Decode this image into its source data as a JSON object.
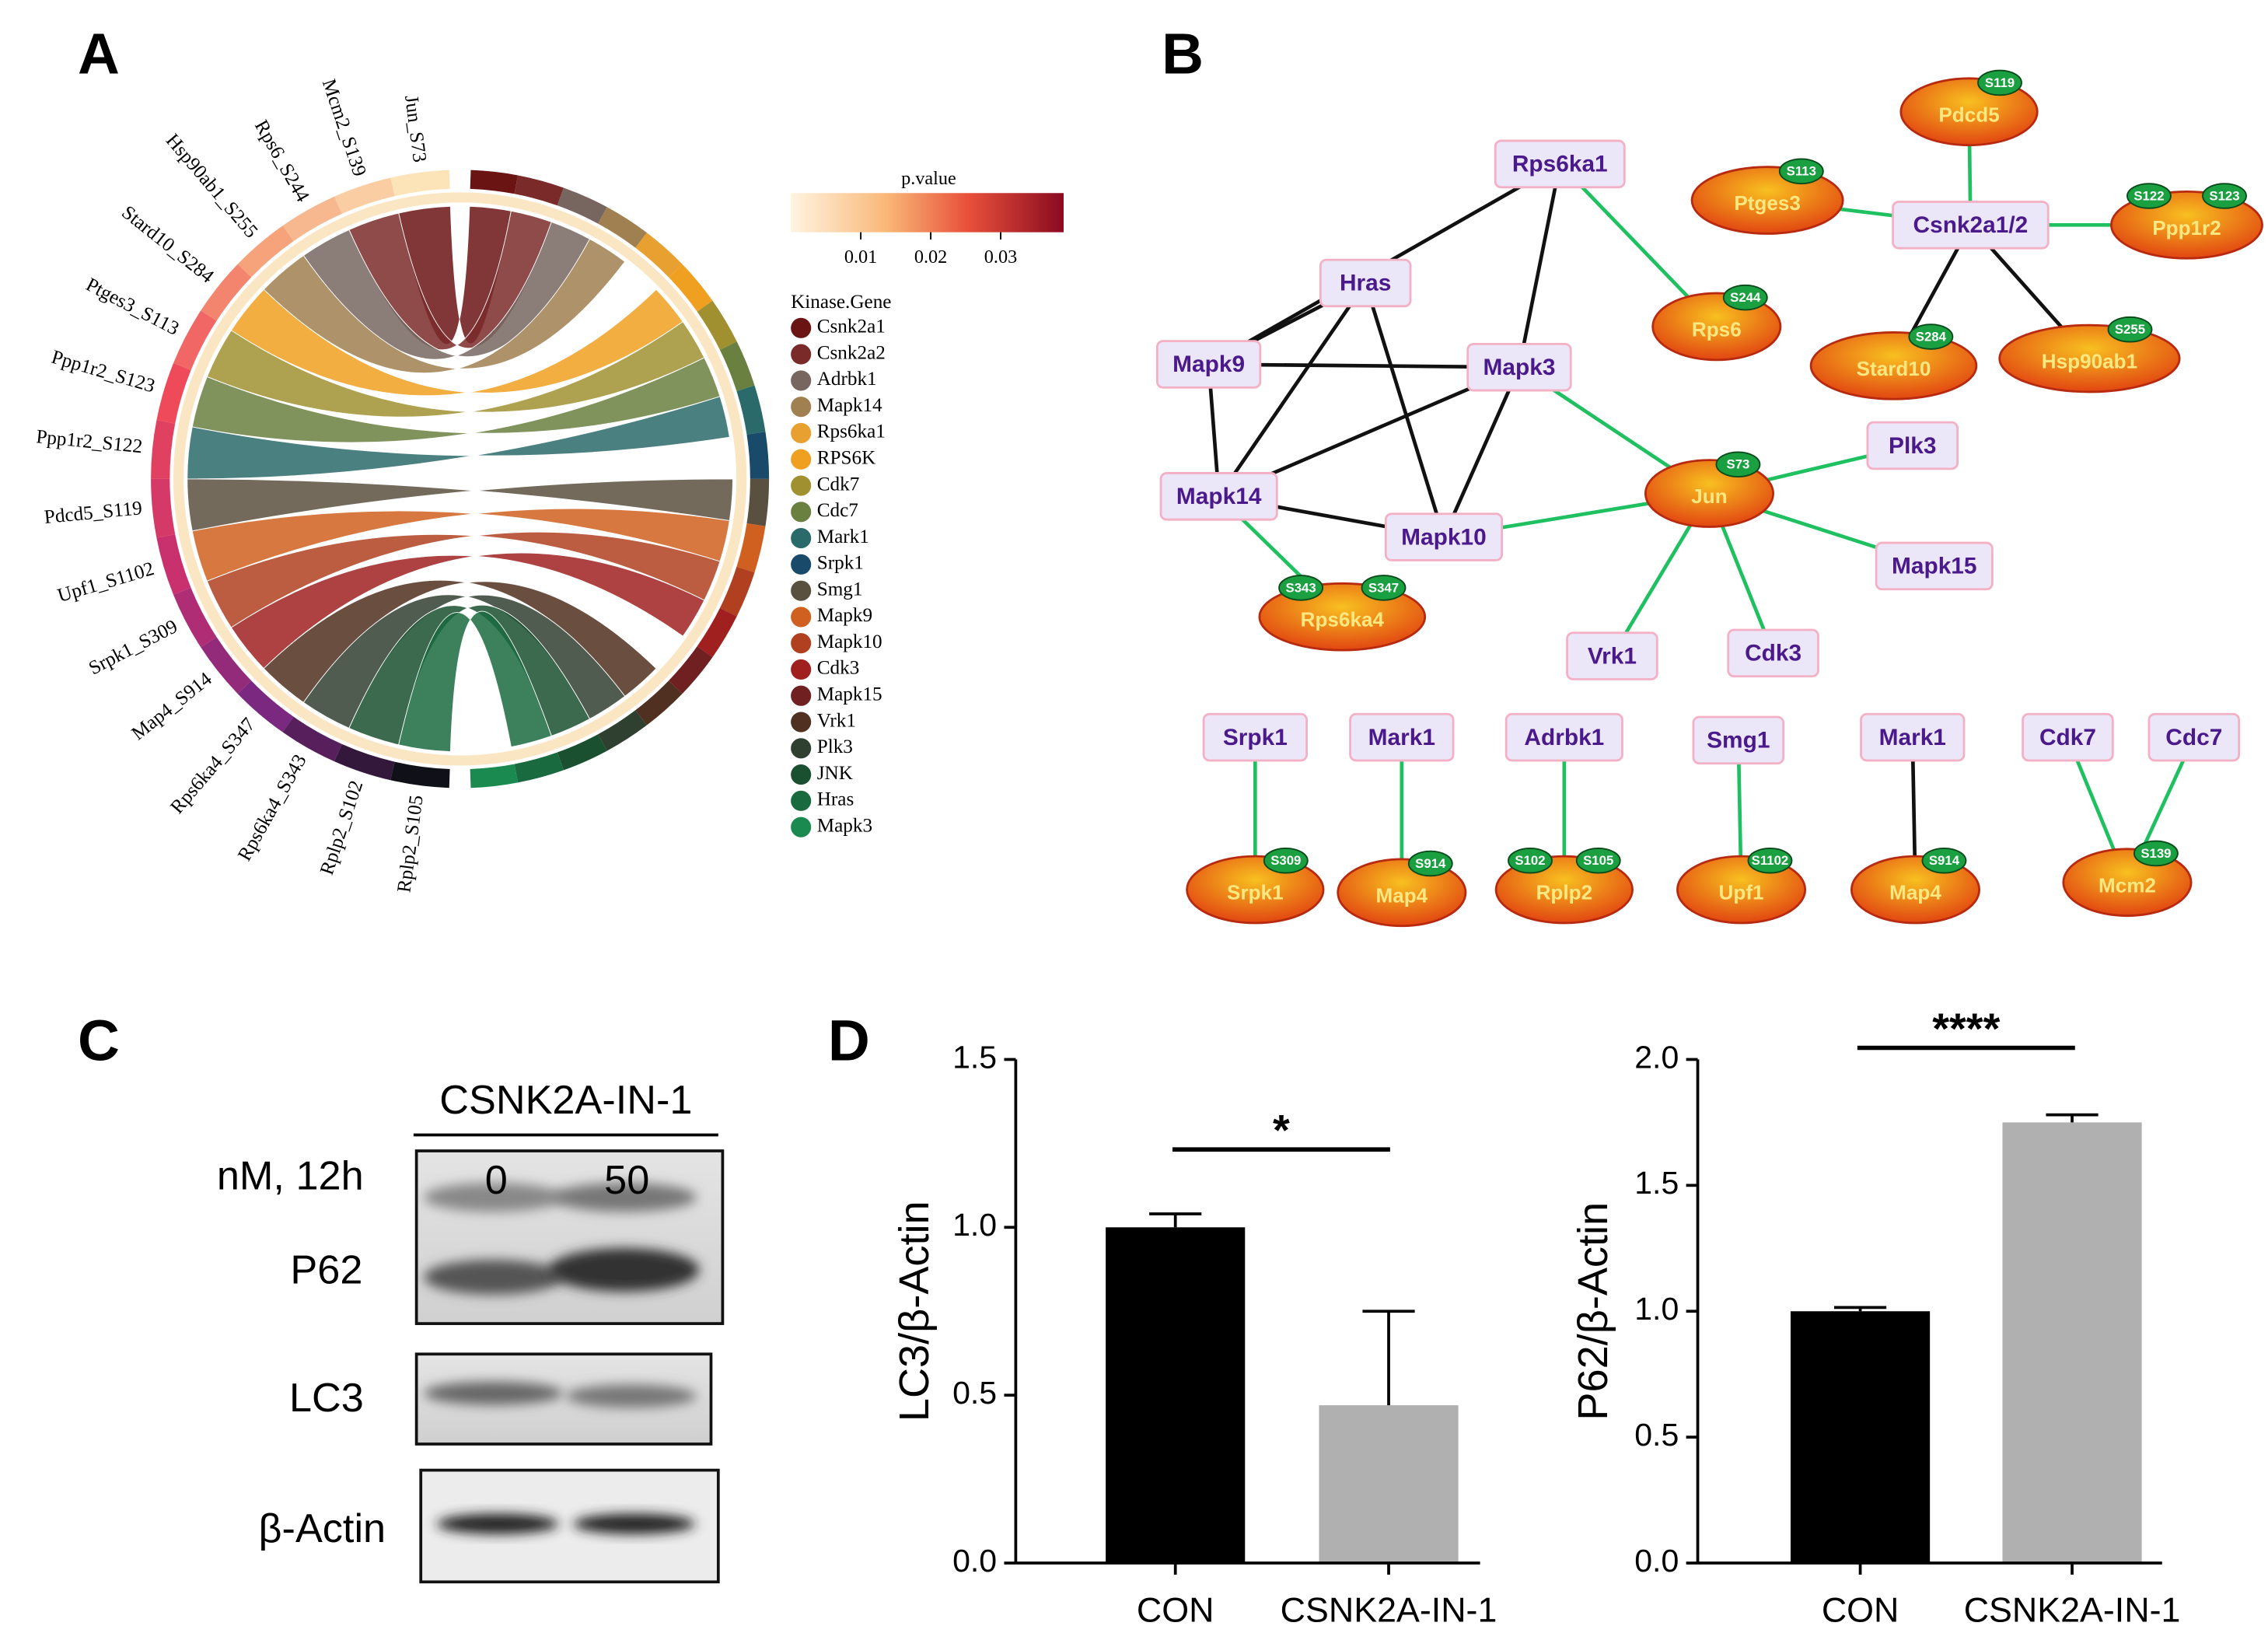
{
  "panel_labels": [
    "A",
    "B",
    "C",
    "D"
  ],
  "chord": {
    "sites": [
      "Jun_S73",
      "Mcm2_S139",
      "Rps6_S244",
      "Hsp90ab1_S255",
      "Stard10_S284",
      "Ptges3_S113",
      "Ppp1r2_S123",
      "Ppp1r2_S122",
      "Pdcd5_S119",
      "Upf1_S1102",
      "Srpk1_S309",
      "Map4_S914",
      "Rps6ka4_S347",
      "Rps6ka4_S343",
      "Rplp2_S102",
      "Rplp2_S105"
    ],
    "colorbar": {
      "title": "p.value",
      "lim": [
        0,
        0.039
      ],
      "ticks": [
        0.01,
        0.02,
        0.03
      ]
    },
    "legend_title": "Kinase.Gene",
    "kinases": [
      {
        "name": "Csnk2a1",
        "color": "#6b1414"
      },
      {
        "name": "Csnk2a2",
        "color": "#7b2a2a"
      },
      {
        "name": "Adrbk1",
        "color": "#776660"
      },
      {
        "name": "Mapk14",
        "color": "#a08050"
      },
      {
        "name": "Rps6ka1",
        "color": "#e8a030"
      },
      {
        "name": "RPS6K",
        "color": "#f0a020"
      },
      {
        "name": "Cdk7",
        "color": "#a09030"
      },
      {
        "name": "Cdc7",
        "color": "#6a8040"
      },
      {
        "name": "Mark1",
        "color": "#2a6a6a"
      },
      {
        "name": "Srpk1",
        "color": "#1a4a6a"
      },
      {
        "name": "Smg1",
        "color": "#5a5040"
      },
      {
        "name": "Mapk9",
        "color": "#d06020"
      },
      {
        "name": "Mapk10",
        "color": "#b04020"
      },
      {
        "name": "Cdk3",
        "color": "#a02020"
      },
      {
        "name": "Mapk15",
        "color": "#702020"
      },
      {
        "name": "Vrk1",
        "color": "#503020"
      },
      {
        "name": "Plk3",
        "color": "#304030"
      },
      {
        "name": "JNK",
        "color": "#1a5030"
      },
      {
        "name": "Hras",
        "color": "#1a6a40"
      },
      {
        "name": "Mapk3",
        "color": "#1a8a50"
      }
    ]
  },
  "network": {
    "nodes": [
      {
        "label": "Rps6ka1",
        "kind": "kinase"
      },
      {
        "label": "Hras",
        "kind": "kinase"
      },
      {
        "label": "Mapk9",
        "kind": "kinase"
      },
      {
        "label": "Mapk3",
        "kind": "kinase"
      },
      {
        "label": "Mapk14",
        "kind": "kinase"
      },
      {
        "label": "Mapk10",
        "kind": "kinase"
      },
      {
        "label": "Rps6",
        "kind": "substrate",
        "sites": [
          "S244"
        ]
      },
      {
        "label": "Jun",
        "kind": "substrate",
        "sites": [
          "S73"
        ]
      },
      {
        "label": "Rps6ka4",
        "kind": "substrate",
        "sites": [
          "S343",
          "S347"
        ]
      },
      {
        "label": "Plk3",
        "kind": "kinase"
      },
      {
        "label": "Mapk15",
        "kind": "kinase"
      },
      {
        "label": "Vrk1",
        "kind": "kinase"
      },
      {
        "label": "Cdk3",
        "kind": "kinase"
      },
      {
        "label": "Csnk2a1/2",
        "kind": "kinase"
      },
      {
        "label": "Pdcd5",
        "kind": "substrate",
        "sites": [
          "S119"
        ]
      },
      {
        "label": "Ptges3",
        "kind": "substrate",
        "sites": [
          "S113"
        ]
      },
      {
        "label": "Ppp1r2",
        "kind": "substrate",
        "sites": [
          "S122",
          "S123"
        ]
      },
      {
        "label": "Stard10",
        "kind": "substrate",
        "sites": [
          "S284"
        ]
      },
      {
        "label": "Hsp90ab1",
        "kind": "substrate",
        "sites": [
          "S255"
        ]
      },
      {
        "label": "Srpk1",
        "kind": "kinase"
      },
      {
        "label": "Srpk1",
        "kind": "substrate",
        "sites": [
          "S309"
        ]
      },
      {
        "label": "Mark1",
        "kind": "kinase"
      },
      {
        "label": "Map4",
        "kind": "substrate",
        "sites": [
          "S914"
        ]
      },
      {
        "label": "Adrbk1",
        "kind": "kinase"
      },
      {
        "label": "Rplp2",
        "kind": "substrate",
        "sites": [
          "S102",
          "S105"
        ]
      },
      {
        "label": "Smg1",
        "kind": "kinase"
      },
      {
        "label": "Upf1",
        "kind": "substrate",
        "sites": [
          "S1102"
        ]
      },
      {
        "label": "Mark1",
        "kind": "kinase"
      },
      {
        "label": "Map4",
        "kind": "substrate",
        "sites": [
          "S914"
        ]
      },
      {
        "label": "Cdk7",
        "kind": "kinase"
      },
      {
        "label": "Cdc7",
        "kind": "kinase"
      },
      {
        "label": "Mcm2",
        "kind": "substrate",
        "sites": [
          "S139"
        ]
      }
    ],
    "edges": [
      {
        "from": 0,
        "to": 2,
        "color": "#111111"
      },
      {
        "from": 0,
        "to": 3,
        "color": "#111111"
      },
      {
        "from": 0,
        "to": 6,
        "color": "#1ec060"
      },
      {
        "from": 1,
        "to": 2,
        "color": "#111111"
      },
      {
        "from": 1,
        "to": 4,
        "color": "#111111"
      },
      {
        "from": 1,
        "to": 5,
        "color": "#111111"
      },
      {
        "from": 2,
        "to": 3,
        "color": "#111111"
      },
      {
        "from": 2,
        "to": 4,
        "color": "#111111"
      },
      {
        "from": 4,
        "to": 3,
        "color": "#111111"
      },
      {
        "from": 4,
        "to": 5,
        "color": "#111111"
      },
      {
        "from": 5,
        "to": 3,
        "color": "#111111"
      },
      {
        "from": 3,
        "to": 7,
        "color": "#1ec060"
      },
      {
        "from": 5,
        "to": 7,
        "color": "#1ec060"
      },
      {
        "from": 4,
        "to": 8,
        "color": "#1ec060"
      },
      {
        "from": 7,
        "to": 9,
        "color": "#1ec060"
      },
      {
        "from": 7,
        "to": 10,
        "color": "#1ec060"
      },
      {
        "from": 7,
        "to": 11,
        "color": "#1ec060"
      },
      {
        "from": 7,
        "to": 12,
        "color": "#1ec060"
      },
      {
        "from": 13,
        "to": 14,
        "color": "#1ec060"
      },
      {
        "from": 13,
        "to": 15,
        "color": "#1ec060"
      },
      {
        "from": 13,
        "to": 16,
        "color": "#1ec060"
      },
      {
        "from": 13,
        "to": 17,
        "color": "#111111"
      },
      {
        "from": 13,
        "to": 18,
        "color": "#111111"
      },
      {
        "from": 19,
        "to": 20,
        "color": "#1ec060"
      },
      {
        "from": 21,
        "to": 22,
        "color": "#1ec060"
      },
      {
        "from": 23,
        "to": 24,
        "color": "#1ec060"
      },
      {
        "from": 25,
        "to": 26,
        "color": "#1ec060"
      },
      {
        "from": 27,
        "to": 28,
        "color": "#111111"
      },
      {
        "from": 29,
        "to": 31,
        "color": "#1ec060"
      },
      {
        "from": 30,
        "to": 31,
        "color": "#1ec060"
      }
    ]
  },
  "blot": {
    "treatment": "CSNK2A-IN-1",
    "condition": "nM, 12h",
    "doses": [
      "0",
      "50"
    ],
    "rows": [
      "P62",
      "LC3",
      "β-Actin"
    ]
  },
  "chart_data": [
    {
      "type": "bar",
      "ylabel": "LC3/β-Actin",
      "categories": [
        "CON",
        "CSNK2A-IN-1"
      ],
      "values": [
        1.0,
        0.47
      ],
      "errors": [
        0.04,
        0.28
      ],
      "colors": [
        "#000000",
        "#b0b0b0"
      ],
      "ylim": [
        0,
        1.5
      ],
      "yticks": [
        {
          "value": 0,
          "label": "0.0"
        },
        0.5,
        {
          "value": 1,
          "label": "1.0"
        },
        1.5
      ],
      "annotation": "*"
    },
    {
      "type": "bar",
      "ylabel": "P62/β-Actin",
      "categories": [
        "CON",
        "CSNK2A-IN-1"
      ],
      "values": [
        1.0,
        1.75
      ],
      "errors": [
        0.015,
        0.03
      ],
      "colors": [
        "#000000",
        "#b0b0b0"
      ],
      "ylim": [
        0,
        2
      ],
      "yticks": [
        {
          "value": 0,
          "label": "0.0"
        },
        0.5,
        {
          "value": 1,
          "label": "1.0"
        },
        1.5,
        {
          "value": 2,
          "label": "2.0"
        }
      ],
      "annotation": "****"
    }
  ]
}
